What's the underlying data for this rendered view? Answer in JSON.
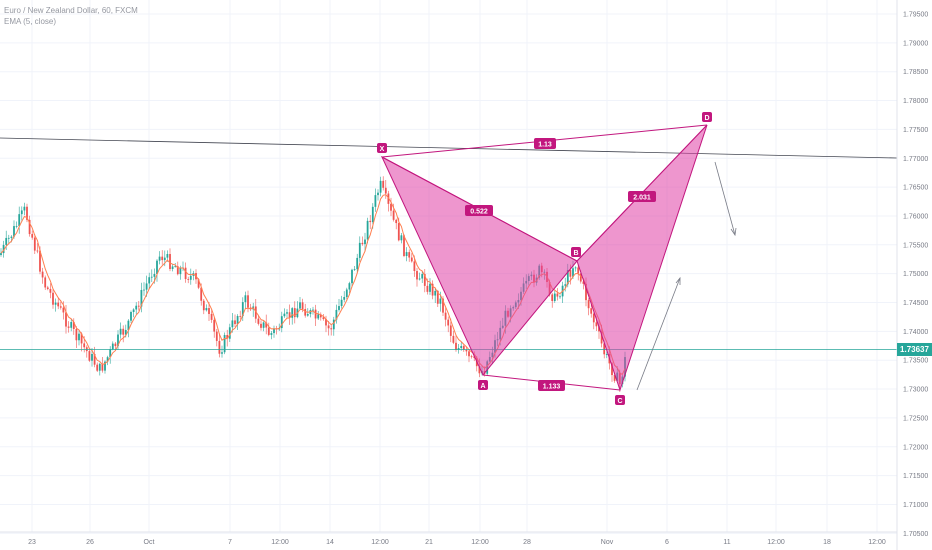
{
  "legend": {
    "symbol": "Euro / New Zealand Dollar, 60, FXCM",
    "indicator": "EMA (5, close)"
  },
  "price_axis": {
    "labels": [
      "1.79500",
      "1.79000",
      "1.78500",
      "1.78000",
      "1.77500",
      "1.77000",
      "1.76500",
      "1.76000",
      "1.75500",
      "1.75000",
      "1.74500",
      "1.74000",
      "1.73500",
      "1.73000",
      "1.72500",
      "1.72000",
      "1.71500",
      "1.71000",
      "1.70500"
    ],
    "current_price": "1.73637"
  },
  "time_axis": {
    "labels": [
      "23",
      "26",
      "Oct",
      "7",
      "12:00",
      "14",
      "12:00",
      "21",
      "12:00",
      "28",
      "Nov",
      "6",
      "11",
      "12:00",
      "18",
      "12:00"
    ]
  },
  "pattern": {
    "points": [
      "X",
      "A",
      "B",
      "C",
      "D"
    ],
    "ratios": {
      "xd": "1.13",
      "xb": "0.522",
      "bd": "2.031",
      "ac": "1.133"
    }
  },
  "colors": {
    "pattern_fill": "#e040a6",
    "pattern_label_bg": "#c2177e",
    "bull": "#26a69a",
    "bear": "#ef5350",
    "ema": "#ff7f50",
    "price_line": "#26a69a"
  },
  "chart_data": {
    "type": "candlestick",
    "ylim": [
      1.7025,
      1.7975
    ],
    "current_price": 1.73637
  }
}
